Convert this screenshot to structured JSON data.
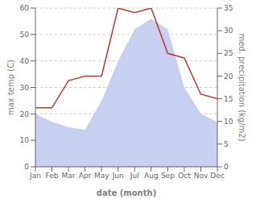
{
  "chart_data": {
    "type": "area",
    "xlabel": "date (month)",
    "ylabel": "max temp (C)",
    "y2label": "med. precipitation (kg/m2)",
    "categories": [
      "Jan",
      "Feb",
      "Mar",
      "Apr",
      "May",
      "Jun",
      "Jul",
      "Aug",
      "Sep",
      "Oct",
      "Nov",
      "Dec"
    ],
    "series": [
      {
        "type": "area",
        "color": "#c8d0f0",
        "values": [
          20,
          17,
          15,
          14,
          25,
          40,
          52,
          56,
          52,
          30,
          20,
          17
        ]
      },
      {
        "type": "line",
        "color": "#c0392b",
        "axis": "y2",
        "values": [
          13,
          13,
          19,
          20,
          20,
          35,
          34,
          35,
          25,
          24,
          16,
          15
        ]
      }
    ],
    "ylim": [
      0,
      60
    ],
    "yticks": [
      0,
      10,
      20,
      30,
      40,
      50,
      60
    ],
    "y2lim": [
      0,
      35
    ],
    "y2ticks": [
      0,
      5,
      10,
      15,
      20,
      25,
      30,
      35
    ],
    "grid": true
  }
}
